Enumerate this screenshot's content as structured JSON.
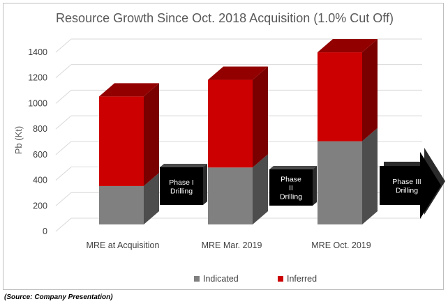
{
  "chart_data": {
    "type": "bar",
    "stacked": true,
    "style": "3d",
    "title": "Resource Growth Since Oct. 2018 Acquisition (1.0% Cut Off)",
    "ylabel": "Pb (Kt)",
    "xlabel": "",
    "ylim": [
      0,
      1400
    ],
    "yticks": [
      0,
      200,
      400,
      600,
      800,
      1000,
      1200,
      1400
    ],
    "grid": true,
    "legend_position": "bottom",
    "categories": [
      "MRE at Acquisition",
      "MRE Mar. 2019",
      "MRE Oct. 2019"
    ],
    "series": [
      {
        "name": "Indicated",
        "color": "#808080",
        "values": [
          300,
          445,
          650
        ]
      },
      {
        "name": "Inferred",
        "color": "#cc0000",
        "values": [
          700,
          685,
          695
        ]
      }
    ],
    "annotations": [
      {
        "text": "Phase I Drilling",
        "lines": [
          "Phase I",
          "Drilling"
        ]
      },
      {
        "text": "Phase II Drilling",
        "lines": [
          "Phase",
          "II",
          "Drilling"
        ]
      },
      {
        "text": "Phase III Drilling",
        "lines": [
          "Phase III",
          "Drilling"
        ]
      }
    ]
  },
  "source_note": "(Source: Company Presentation)"
}
